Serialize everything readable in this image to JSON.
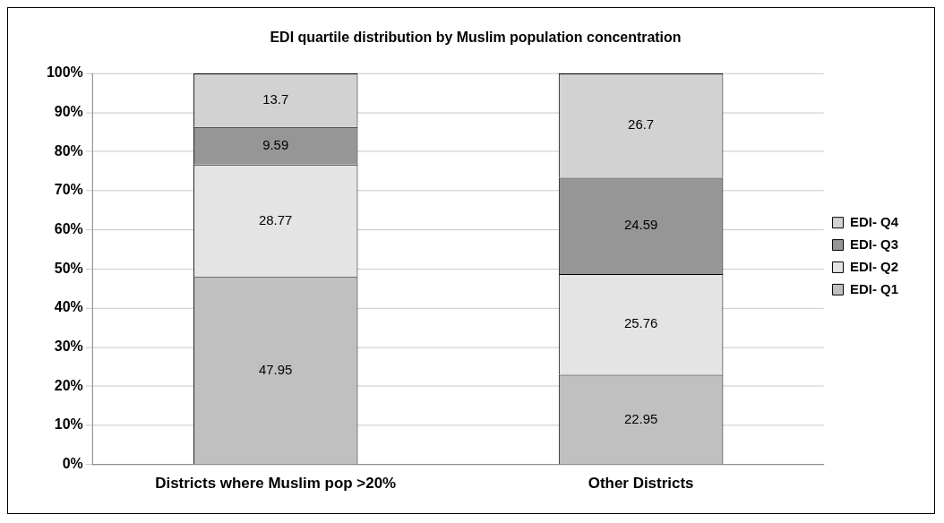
{
  "chart_data": {
    "type": "bar",
    "title": "EDI quartile distribution by Muslim population concentration",
    "categories": [
      "Districts where Muslim pop >20%",
      "Other Districts"
    ],
    "stacked": true,
    "series": [
      {
        "name": "EDI- Q1",
        "color": "#c0c0c0",
        "values": [
          47.95,
          22.95
        ]
      },
      {
        "name": "EDI- Q2",
        "color": "#e4e4e4",
        "values": [
          28.77,
          25.76
        ]
      },
      {
        "name": "EDI- Q3",
        "color": "#969696",
        "values": [
          9.59,
          24.59
        ]
      },
      {
        "name": "EDI- Q4",
        "color": "#d2d2d2",
        "values": [
          13.7,
          26.7
        ]
      }
    ],
    "ylim": [
      0,
      100
    ],
    "yticks": [
      {
        "value": 0,
        "label": "0%"
      },
      {
        "value": 10,
        "label": "10%"
      },
      {
        "value": 20,
        "label": "20%"
      },
      {
        "value": 30,
        "label": "30%"
      },
      {
        "value": 40,
        "label": "40%"
      },
      {
        "value": 50,
        "label": "50%"
      },
      {
        "value": 60,
        "label": "60%"
      },
      {
        "value": 70,
        "label": "70%"
      },
      {
        "value": 80,
        "label": "80%"
      },
      {
        "value": 90,
        "label": "90%"
      },
      {
        "value": 100,
        "label": "100%"
      }
    ],
    "grid": "y",
    "legend": "right",
    "data_labels": true
  }
}
